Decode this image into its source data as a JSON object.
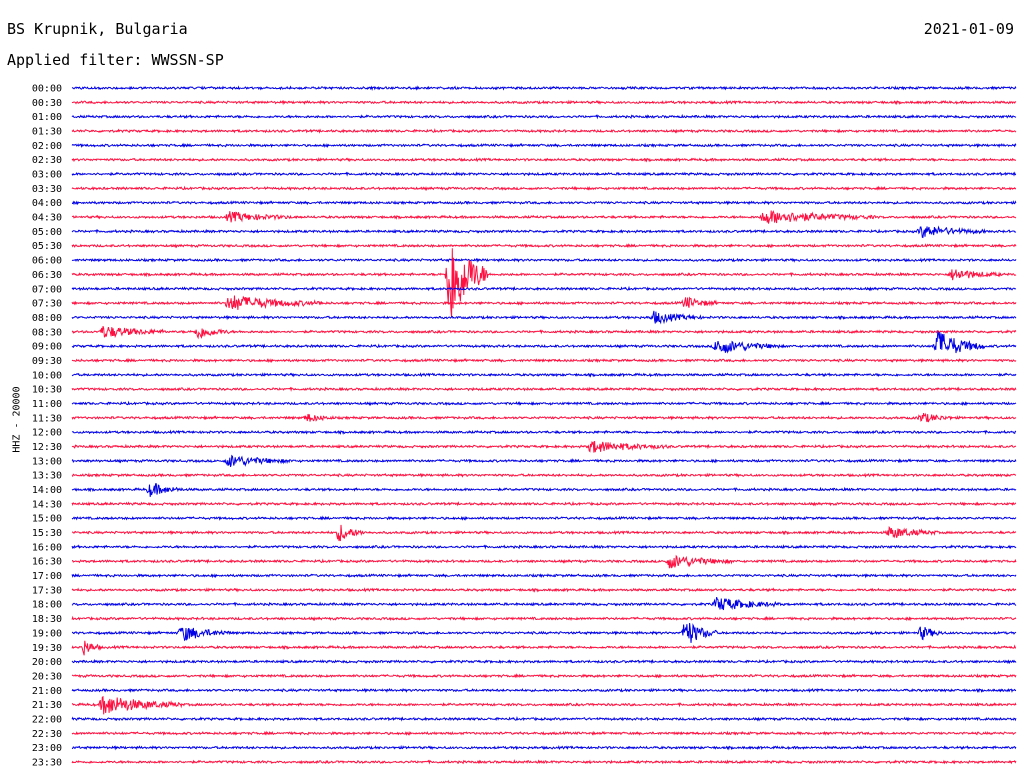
{
  "header": {
    "station": "BS Krupnik, Bulgaria",
    "date": "2021-01-09",
    "filter": "Applied filter: WWSSN-SP",
    "channel_label": "HHZ - 20000"
  },
  "colors": {
    "even_row": "#0000e6",
    "odd_row": "#ff1040"
  },
  "chart_data": {
    "type": "line",
    "title": "BS Krupnik, Bulgaria",
    "subtitle": "Applied filter: WWSSN-SP",
    "ylabel": "HHZ - 20000",
    "xlabel": "",
    "row_labels": [
      "00:00",
      "00:30",
      "01:00",
      "01:30",
      "02:00",
      "02:30",
      "03:00",
      "03:30",
      "04:00",
      "04:30",
      "05:00",
      "05:30",
      "06:00",
      "06:30",
      "07:00",
      "07:30",
      "08:00",
      "08:30",
      "09:00",
      "09:30",
      "10:00",
      "10:30",
      "11:00",
      "11:30",
      "12:00",
      "12:30",
      "13:00",
      "13:30",
      "14:00",
      "14:30",
      "15:00",
      "15:30",
      "16:00",
      "16:30",
      "17:00",
      "17:30",
      "18:00",
      "18:30",
      "19:00",
      "19:30",
      "20:00",
      "20:30",
      "21:00",
      "21:30",
      "22:00",
      "22:30",
      "23:00",
      "23:30"
    ],
    "x_range_minutes": [
      0,
      30
    ],
    "events": [
      {
        "row": "04:30",
        "minute": 5.0,
        "amplitude": 5,
        "duration": 2.0
      },
      {
        "row": "04:30",
        "minute": 22.0,
        "amplitude": 7,
        "duration": 3.5
      },
      {
        "row": "05:00",
        "minute": 27.0,
        "amplitude": 6,
        "duration": 2.0
      },
      {
        "row": "06:30",
        "minute": 12.0,
        "amplitude": 55,
        "duration": 1.2
      },
      {
        "row": "06:30",
        "minute": 28.0,
        "amplitude": 6,
        "duration": 1.5
      },
      {
        "row": "07:30",
        "minute": 5.0,
        "amplitude": 8,
        "duration": 3.0
      },
      {
        "row": "07:30",
        "minute": 19.5,
        "amplitude": 6,
        "duration": 1.0
      },
      {
        "row": "08:00",
        "minute": 18.5,
        "amplitude": 6,
        "duration": 1.5
      },
      {
        "row": "08:30",
        "minute": 1.0,
        "amplitude": 6,
        "duration": 2.0
      },
      {
        "row": "08:30",
        "minute": 4.0,
        "amplitude": 7,
        "duration": 1.0
      },
      {
        "row": "09:00",
        "minute": 20.5,
        "amplitude": 8,
        "duration": 2.0
      },
      {
        "row": "09:00",
        "minute": 27.5,
        "amplitude": 16,
        "duration": 1.5
      },
      {
        "row": "11:30",
        "minute": 7.5,
        "amplitude": 4,
        "duration": 0.8
      },
      {
        "row": "11:30",
        "minute": 27.0,
        "amplitude": 5,
        "duration": 1.0
      },
      {
        "row": "12:30",
        "minute": 16.5,
        "amplitude": 6,
        "duration": 2.5
      },
      {
        "row": "13:00",
        "minute": 5.0,
        "amplitude": 6,
        "duration": 2.0
      },
      {
        "row": "14:00",
        "minute": 2.5,
        "amplitude": 7,
        "duration": 1.0
      },
      {
        "row": "15:30",
        "minute": 8.5,
        "amplitude": 9,
        "duration": 0.8
      },
      {
        "row": "15:30",
        "minute": 26.0,
        "amplitude": 6,
        "duration": 1.5
      },
      {
        "row": "16:30",
        "minute": 19.0,
        "amplitude": 7,
        "duration": 2.0
      },
      {
        "row": "18:00",
        "minute": 20.5,
        "amplitude": 7,
        "duration": 2.0
      },
      {
        "row": "19:00",
        "minute": 3.5,
        "amplitude": 8,
        "duration": 1.5
      },
      {
        "row": "19:00",
        "minute": 19.5,
        "amplitude": 14,
        "duration": 1.0
      },
      {
        "row": "19:00",
        "minute": 27.0,
        "amplitude": 7,
        "duration": 0.7
      },
      {
        "row": "19:30",
        "minute": 0.4,
        "amplitude": 8,
        "duration": 0.5
      },
      {
        "row": "21:30",
        "minute": 1.0,
        "amplitude": 10,
        "duration": 2.5
      }
    ]
  }
}
